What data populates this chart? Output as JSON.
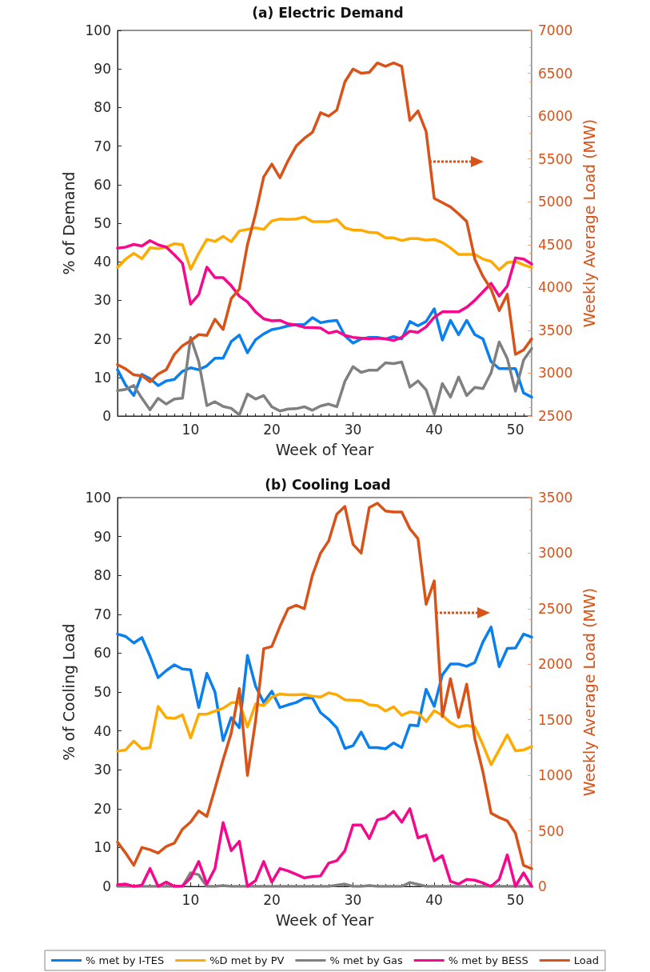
{
  "chart_data": [
    {
      "type": "line",
      "title": "(a) Electric Demand",
      "xlabel": "Week of Year",
      "ylabel": "% of Demand",
      "y2label": "Weekly Average Load (MW)",
      "x": [
        1,
        2,
        3,
        4,
        5,
        6,
        7,
        8,
        9,
        10,
        11,
        12,
        13,
        14,
        15,
        16,
        17,
        18,
        19,
        20,
        21,
        22,
        23,
        24,
        25,
        26,
        27,
        28,
        29,
        30,
        31,
        32,
        33,
        34,
        35,
        36,
        37,
        38,
        39,
        40,
        41,
        42,
        43,
        44,
        45,
        46,
        47,
        48,
        49,
        50,
        51,
        52
      ],
      "xlim": [
        1,
        52
      ],
      "xticks": [
        10,
        20,
        30,
        40,
        50
      ],
      "ylim": [
        0,
        100
      ],
      "yticks": [
        0,
        10,
        20,
        30,
        40,
        50,
        60,
        70,
        80,
        90,
        100
      ],
      "y2lim": [
        2500,
        7000
      ],
      "y2ticks": [
        2500,
        3000,
        3500,
        4000,
        4500,
        5000,
        5500,
        6000,
        6500,
        7000
      ],
      "grid": false,
      "legend": false,
      "marker": "none",
      "line_style": "solid",
      "series": [
        {
          "color": "#0a80ef",
          "values": [
            12,
            8,
            5.3,
            10.8,
            9.7,
            7.9,
            9.1,
            9.5,
            11.6,
            12.5,
            12,
            13,
            15,
            15,
            19.3,
            21,
            16.4,
            19.8,
            21.3,
            22.4,
            22.8,
            23.4,
            23.7,
            23.7,
            25.5,
            24.2,
            24.6,
            24.8,
            20.8,
            18.9,
            20,
            20.4,
            20.4,
            20,
            20.6,
            20,
            24.5,
            23.4,
            24.5,
            27.8,
            19.7,
            24.8,
            21.1,
            24.8,
            21.1,
            20,
            14.1,
            12.3,
            12.3,
            12.3,
            6,
            4.9
          ]
        },
        {
          "color": "#ffaa00",
          "values": [
            38.5,
            40.7,
            42.2,
            40.8,
            43.6,
            43.4,
            43.8,
            44.7,
            44.4,
            38.1,
            42.2,
            45.8,
            45.3,
            46.6,
            45.2,
            48,
            48.4,
            48.8,
            48.4,
            50.6,
            51.1,
            51,
            51.1,
            51.6,
            50.4,
            50.4,
            50.4,
            51,
            48.8,
            48.2,
            48.2,
            47.6,
            47.5,
            46.2,
            46.2,
            45.5,
            46,
            46,
            45.6,
            45.8,
            45,
            43.6,
            41.9,
            41.9,
            41.9,
            40.7,
            40.1,
            37.9,
            39.8,
            40.1,
            39.2,
            38.5
          ]
        },
        {
          "color": "#808080",
          "values": [
            6.6,
            6.9,
            7.9,
            4.6,
            1.6,
            4.6,
            3.1,
            4.4,
            4.6,
            20.4,
            14.1,
            2.7,
            3.7,
            2.5,
            2,
            0.3,
            5.7,
            4.4,
            5.3,
            2.4,
            1.3,
            1.8,
            1.9,
            2.4,
            1.5,
            2.6,
            3.1,
            2.4,
            9,
            12.8,
            11.3,
            11.9,
            11.9,
            13.8,
            13.6,
            14,
            7.5,
            9.1,
            6.8,
            0.5,
            8.4,
            4.9,
            10.1,
            5.3,
            7.4,
            7.1,
            11.2,
            19.2,
            14.9,
            6.4,
            14.5,
            17.5
          ]
        },
        {
          "color": "#f5088c",
          "values": [
            43.5,
            43.8,
            44.5,
            44.1,
            45.5,
            44.4,
            43.8,
            41.8,
            39.6,
            29,
            31.5,
            38.6,
            35.9,
            35.9,
            33.8,
            31.1,
            29.6,
            27,
            25.2,
            24.7,
            24.8,
            23.9,
            23.6,
            23,
            22.9,
            22.8,
            21.5,
            22,
            20.9,
            20.4,
            20.2,
            20,
            20.2,
            20,
            19.6,
            20.4,
            22,
            21.7,
            23.1,
            25.6,
            27,
            27,
            27,
            28.2,
            30,
            32.2,
            34.4,
            31.1,
            33.7,
            41,
            40.7,
            39.4
          ]
        },
        {
          "color": "#d95319",
          "axis": "y2",
          "values": [
            3100,
            3050,
            2980,
            2970,
            2900,
            2990,
            3040,
            3220,
            3320,
            3380,
            3450,
            3440,
            3630,
            3510,
            3870,
            3980,
            4500,
            4860,
            5290,
            5440,
            5280,
            5480,
            5650,
            5740,
            5810,
            6040,
            6000,
            6070,
            6400,
            6550,
            6500,
            6510,
            6620,
            6580,
            6620,
            6580,
            5950,
            6060,
            5820,
            5040,
            4990,
            4940,
            4860,
            4770,
            4330,
            4130,
            3980,
            3730,
            3920,
            3220,
            3270,
            3400
          ]
        }
      ]
    },
    {
      "type": "line",
      "title": "(b) Cooling Load",
      "xlabel": "Week of Year",
      "ylabel": "% of Cooling Load",
      "y2label": "Weekly Average Load (MW)",
      "x": [
        1,
        2,
        3,
        4,
        5,
        6,
        7,
        8,
        9,
        10,
        11,
        12,
        13,
        14,
        15,
        16,
        17,
        18,
        19,
        20,
        21,
        22,
        23,
        24,
        25,
        26,
        27,
        28,
        29,
        30,
        31,
        32,
        33,
        34,
        35,
        36,
        37,
        38,
        39,
        40,
        41,
        42,
        43,
        44,
        45,
        46,
        47,
        48,
        49,
        50,
        51,
        52
      ],
      "xlim": [
        1,
        52
      ],
      "xticks": [
        10,
        20,
        30,
        40,
        50
      ],
      "ylim": [
        0,
        100
      ],
      "yticks": [
        0,
        10,
        20,
        30,
        40,
        50,
        60,
        70,
        80,
        90,
        100
      ],
      "y2lim": [
        0,
        3500
      ],
      "y2ticks": [
        0,
        500,
        1000,
        1500,
        2000,
        2500,
        3000,
        3500
      ],
      "grid": false,
      "legend": "bottom",
      "marker": "none",
      "line_style": "solid",
      "series": [
        {
          "name": "% met by I-TES",
          "color": "#0a80ef",
          "values": [
            64.9,
            64.3,
            62.6,
            64,
            59.2,
            53.7,
            55.5,
            57,
            55.9,
            55.7,
            46,
            54.8,
            50,
            37.5,
            43.4,
            40.8,
            59.4,
            51.5,
            47.3,
            50.2,
            46,
            46.7,
            47.3,
            48.4,
            48.5,
            44.7,
            43,
            40.8,
            35.5,
            36.2,
            39.7,
            35.7,
            35.7,
            35.4,
            36.9,
            35.7,
            41.5,
            41.3,
            50.7,
            46.3,
            54.4,
            57.2,
            57.2,
            56.6,
            57.6,
            62.9,
            66.7,
            56.5,
            61.2,
            61.3,
            64.9,
            64.1
          ]
        },
        {
          "name": "%D met by PV",
          "color": "#ffaa00",
          "values": [
            34.8,
            35.1,
            37.4,
            35.4,
            35.7,
            46.3,
            43.4,
            43.2,
            44.1,
            38.2,
            44.3,
            44.3,
            45.1,
            45.8,
            47.2,
            47.4,
            41,
            46.9,
            46.5,
            48.7,
            49.5,
            49.3,
            49.3,
            49.4,
            48.9,
            48.7,
            49.8,
            49.3,
            48,
            47.9,
            47.8,
            46.7,
            46.5,
            45.1,
            46.2,
            44,
            44.9,
            44.6,
            42.4,
            45.2,
            44,
            42.1,
            41,
            41.4,
            41,
            36.4,
            31.3,
            35.1,
            39,
            34.9,
            35.1,
            36
          ]
        },
        {
          "name": "% met by Gas",
          "color": "#808080",
          "values": [
            0,
            0,
            0,
            0,
            0,
            0,
            0,
            0,
            0,
            3.5,
            3,
            0,
            0,
            0.2,
            0,
            0,
            0,
            0,
            0,
            0,
            0,
            0,
            0,
            0,
            0,
            0,
            0,
            0.3,
            0.6,
            0,
            0,
            0.2,
            0,
            0,
            0,
            0,
            1,
            0.5,
            0,
            0,
            0,
            0,
            0,
            0,
            0,
            0,
            0,
            0,
            0,
            0,
            0,
            0
          ]
        },
        {
          "name": "% met by BESS",
          "color": "#f5088c",
          "values": [
            0.4,
            0.6,
            0,
            0.3,
            4.6,
            0,
            1.1,
            0,
            0.1,
            2.2,
            6.4,
            0.6,
            4.6,
            16.4,
            9.2,
            11.6,
            0,
            1.5,
            6.4,
            1.1,
            4.6,
            4,
            3.1,
            2.2,
            2.5,
            2.7,
            6,
            6.6,
            9.2,
            15.8,
            15.8,
            12.3,
            17.1,
            17.6,
            19.3,
            16.5,
            20,
            12.5,
            13.2,
            6.6,
            7.9,
            1.3,
            0.6,
            1.8,
            1.6,
            0.9,
            0,
            1.8,
            8.1,
            0,
            3.5,
            0
          ]
        },
        {
          "name": "Load",
          "color": "#d95319",
          "axis": "y2",
          "values": [
            400,
            300,
            190,
            350,
            330,
            300,
            360,
            390,
            515,
            580,
            680,
            630,
            880,
            1140,
            1380,
            1780,
            1000,
            1490,
            2140,
            2160,
            2340,
            2500,
            2530,
            2500,
            2800,
            3000,
            3110,
            3350,
            3420,
            3080,
            3000,
            3410,
            3450,
            3380,
            3370,
            3370,
            3220,
            3130,
            2540,
            2750,
            1530,
            1870,
            1520,
            1820,
            1330,
            1030,
            660,
            620,
            590,
            480,
            190,
            160
          ]
        }
      ]
    }
  ]
}
